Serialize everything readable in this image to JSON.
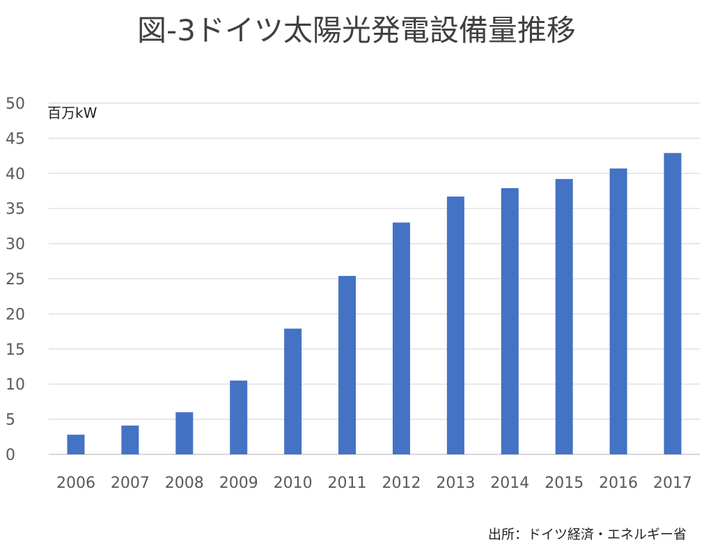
{
  "chart_data": {
    "type": "bar",
    "title": "図-3ドイツ太陽光発電設備量推移",
    "unit_label": "百万kW",
    "categories": [
      "2006",
      "2007",
      "2008",
      "2009",
      "2010",
      "2011",
      "2012",
      "2013",
      "2014",
      "2015",
      "2016",
      "2017"
    ],
    "series": [
      {
        "values": [
          2.8,
          4.1,
          6.0,
          10.5,
          17.9,
          25.4,
          33.0,
          36.7,
          37.9,
          39.2,
          40.7,
          42.9
        ],
        "color": "#4472C4"
      }
    ],
    "ylim": [
      0,
      50
    ],
    "yticks": [
      0,
      5,
      10,
      15,
      20,
      25,
      30,
      35,
      40,
      45,
      50
    ],
    "grid": true,
    "legend": "none",
    "source_note": "出所：ドイツ経済・エネルギー省"
  }
}
